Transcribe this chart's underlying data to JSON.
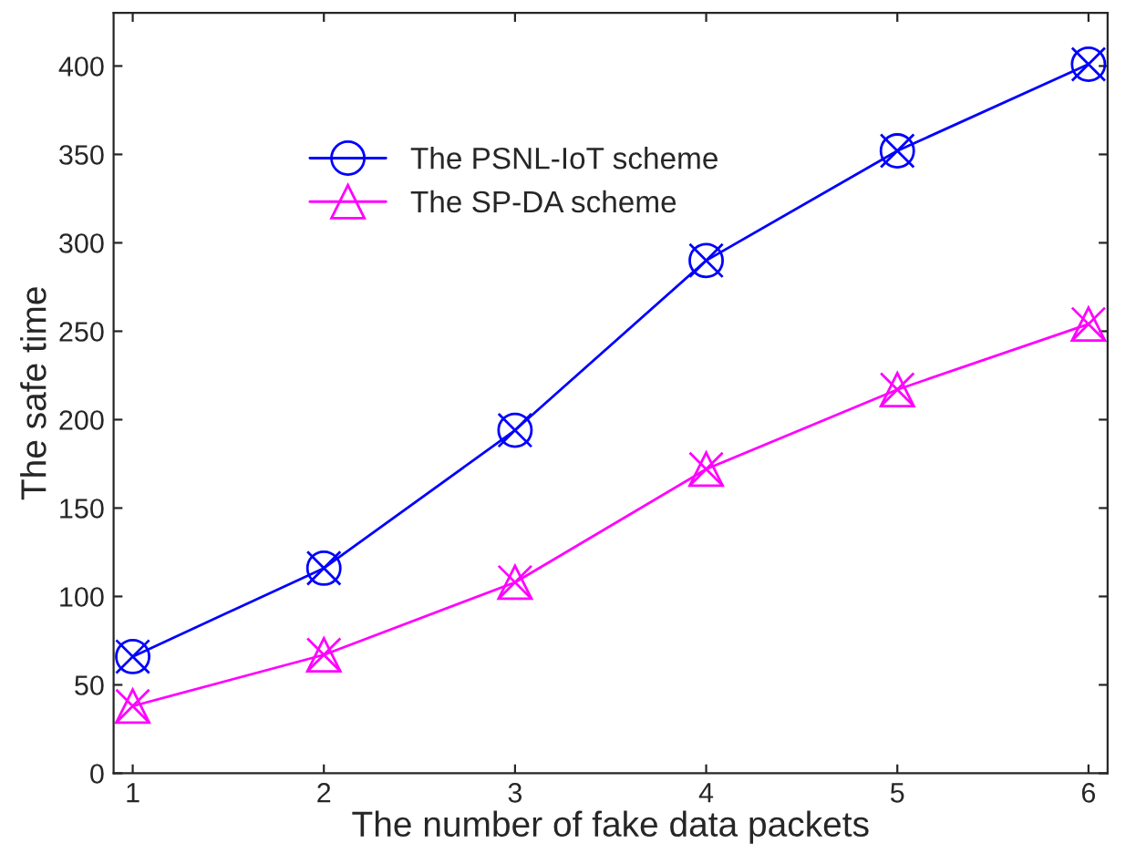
{
  "chart_data": {
    "type": "line",
    "xlabel": "The number of fake data packets",
    "ylabel": "The safe time",
    "x": [
      1,
      2,
      3,
      4,
      5,
      6
    ],
    "series": [
      {
        "name": "The PSNL-IoT scheme",
        "color": "#0000ff",
        "marker": "circle",
        "values": [
          66,
          116,
          194,
          290,
          352,
          401
        ]
      },
      {
        "name": "The SP-DA scheme",
        "color": "#ff00ff",
        "marker": "triangle",
        "values": [
          38,
          67,
          108,
          172,
          217,
          254
        ]
      }
    ],
    "xlim": [
      0.9,
      6.1
    ],
    "xticks": [
      1,
      2,
      3,
      4,
      5,
      6
    ],
    "ylim": [
      0,
      430
    ],
    "yticks": [
      0,
      50,
      100,
      150,
      200,
      250,
      300,
      350,
      400
    ],
    "grid": false,
    "legend": "top left",
    "line_style": "solid"
  }
}
